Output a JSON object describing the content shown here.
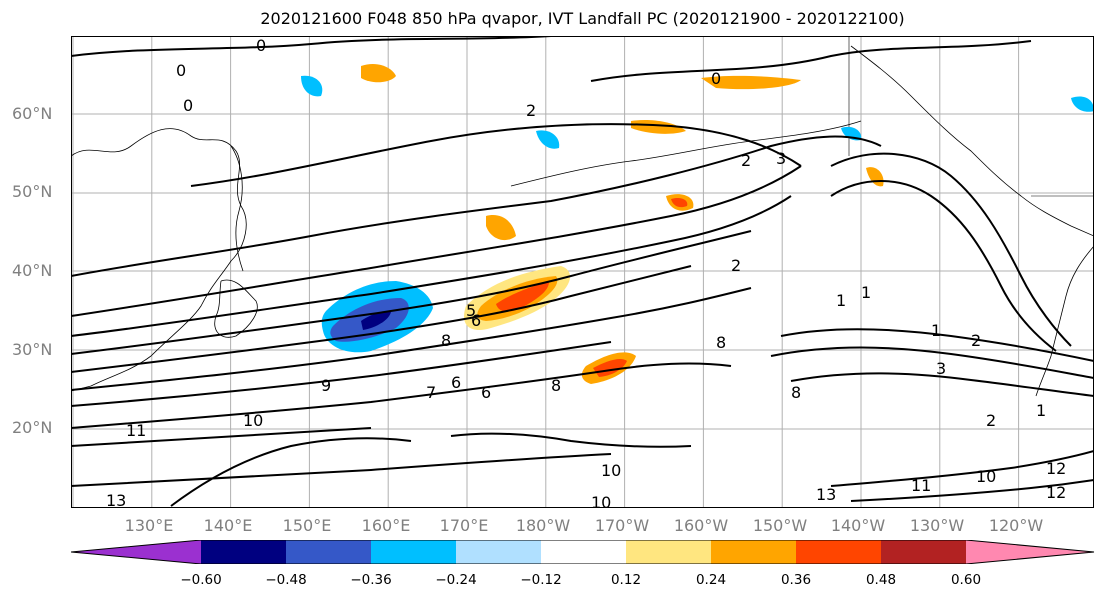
{
  "title": "2020121600 F048 850 hPa qvapor, IVT Landfall PC (2020121900 - 2020122100)",
  "lat_labels": [
    "60°N",
    "50°N",
    "40°N",
    "30°N",
    "20°N"
  ],
  "lon_labels": [
    "130°E",
    "140°E",
    "150°E",
    "160°E",
    "170°E",
    "180°W",
    "170°W",
    "160°W",
    "150°W",
    "140°W",
    "130°W",
    "120°W"
  ],
  "colorbar": {
    "colors": [
      "#9b30d0",
      "#000080",
      "#3558c8",
      "#00bfff",
      "#b0e0ff",
      "#ffffff",
      "#ffe680",
      "#ffa500",
      "#ff4500",
      "#b22222",
      "#ff88b0"
    ],
    "ticks": [
      "−0.60",
      "−0.48",
      "−0.36",
      "−0.24",
      "−0.12",
      "0.12",
      "0.24",
      "0.36",
      "0.48",
      "0.60"
    ]
  },
  "contour_labels": [
    "0",
    "0",
    "0",
    "0",
    "2",
    "2",
    "3",
    "2",
    "1",
    "1",
    "1",
    "2",
    "3",
    "2",
    "1",
    "5",
    "6",
    "8",
    "8",
    "9",
    "7",
    "6",
    "8",
    "6",
    "8",
    "10",
    "11",
    "10",
    "13",
    "10",
    "13",
    "11",
    "10",
    "12",
    "12"
  ]
}
